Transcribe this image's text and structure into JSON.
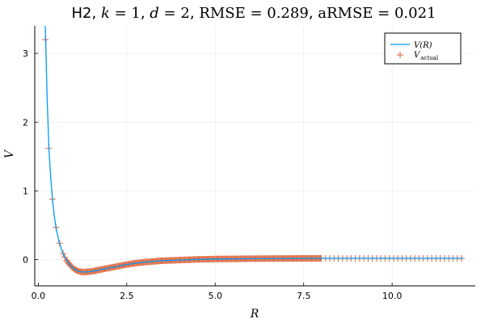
{
  "chart_data": {
    "type": "line",
    "title": {
      "prefix": "H2, ",
      "k_label": "k",
      "k_value": " = 1",
      "sep1": ", ",
      "d_label": "d",
      "d_value": " = 2",
      "sep2": ", ",
      "rmse": "RMSE = 0.289",
      "sep3": ", ",
      "armse": "aRMSE = 0.021"
    },
    "xlabel": "R",
    "ylabel": "V",
    "xlim": [
      -0.1,
      12.35
    ],
    "ylim": [
      -0.38,
      3.4
    ],
    "xticks": [
      0,
      2.5,
      5,
      7.5,
      10
    ],
    "xtick_labels": [
      "0.0",
      "2.5",
      "5.0",
      "7.5",
      "10.0"
    ],
    "yticks": [
      0,
      1,
      2,
      3
    ],
    "ytick_labels": [
      "0",
      "1",
      "2",
      "3"
    ],
    "grid": true,
    "legend_position": "top-right",
    "series": [
      {
        "name": "V(R)",
        "kind": "line",
        "color": "#009AFA",
        "x": [
          0.2,
          0.25,
          0.3,
          0.35,
          0.4,
          0.45,
          0.5,
          0.55,
          0.6,
          0.65,
          0.7,
          0.75,
          0.8,
          0.9,
          1.0,
          1.1,
          1.2,
          1.3,
          1.4,
          1.5,
          1.6,
          1.8,
          2.0,
          2.25,
          2.5,
          2.75,
          3.0,
          3.5,
          4.0,
          4.5,
          5.0,
          6.0,
          7.0,
          8.0,
          9.0,
          10.0,
          11.0,
          12.0
        ],
        "y": [
          3.4,
          2.35,
          1.62,
          1.2,
          0.88,
          0.64,
          0.47,
          0.34,
          0.24,
          0.16,
          0.09,
          0.035,
          -0.01,
          -0.08,
          -0.13,
          -0.16,
          -0.175,
          -0.18,
          -0.175,
          -0.17,
          -0.16,
          -0.14,
          -0.12,
          -0.095,
          -0.07,
          -0.05,
          -0.035,
          -0.015,
          -0.005,
          0.005,
          0.01,
          0.015,
          0.018,
          0.02,
          0.02,
          0.02,
          0.02,
          0.02
        ]
      },
      {
        "name_main": "V",
        "name_sub": "actual",
        "kind": "scatter",
        "color": "#E26F46",
        "x": [
          0.2,
          0.3,
          0.4,
          0.5,
          0.6,
          0.7,
          0.75
        ],
        "y": [
          3.2,
          1.62,
          0.88,
          0.47,
          0.24,
          0.09,
          0.035
        ],
        "dense_from": 0.8,
        "dense_to": 8.0,
        "sparse_to": 12.0
      }
    ]
  }
}
